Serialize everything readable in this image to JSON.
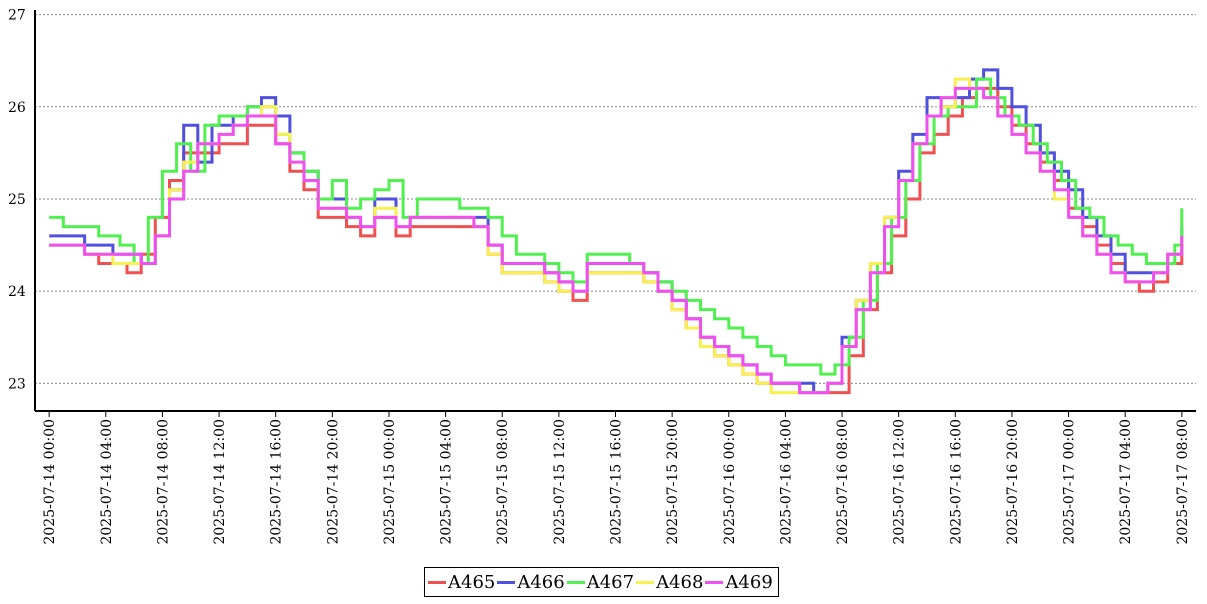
{
  "chart_data": {
    "type": "line",
    "title": "",
    "xlabel": "",
    "ylabel": "",
    "ylim": [
      22.7,
      27.05
    ],
    "xlim": [
      "2025-07-13 23:00",
      "2025-07-17 09:00"
    ],
    "grid": true,
    "legend_position": "bottom-center",
    "y_ticks": [
      23,
      24,
      25,
      26,
      27
    ],
    "x_ticks": [
      "2025-07-14 00:00",
      "2025-07-14 04:00",
      "2025-07-14 08:00",
      "2025-07-14 12:00",
      "2025-07-14 16:00",
      "2025-07-14 20:00",
      "2025-07-15 00:00",
      "2025-07-15 04:00",
      "2025-07-15 08:00",
      "2025-07-15 12:00",
      "2025-07-15 16:00",
      "2025-07-15 20:00",
      "2025-07-16 00:00",
      "2025-07-16 04:00",
      "2025-07-16 08:00",
      "2025-07-16 12:00",
      "2025-07-16 16:00",
      "2025-07-16 20:00",
      "2025-07-17 00:00",
      "2025-07-17 04:00",
      "2025-07-17 08:00"
    ],
    "series": [
      {
        "name": "A465",
        "color": "#f05050",
        "x": [
          "2025-07-14 00:00",
          "2025-07-14 02:30",
          "2025-07-14 03:30",
          "2025-07-14 05:30",
          "2025-07-14 06:30",
          "2025-07-14 07:30",
          "2025-07-14 08:30",
          "2025-07-14 09:30",
          "2025-07-14 10:30",
          "2025-07-14 11:00",
          "2025-07-14 12:00",
          "2025-07-14 14:00",
          "2025-07-14 15:00",
          "2025-07-14 16:00",
          "2025-07-14 17:00",
          "2025-07-14 18:00",
          "2025-07-14 19:00",
          "2025-07-14 20:00",
          "2025-07-14 21:00",
          "2025-07-14 22:00",
          "2025-07-14 23:00",
          "2025-07-15 00:30",
          "2025-07-15 01:30",
          "2025-07-15 06:00",
          "2025-07-15 07:00",
          "2025-07-15 08:00",
          "2025-07-15 09:00",
          "2025-07-15 11:00",
          "2025-07-15 12:00",
          "2025-07-15 13:00",
          "2025-07-15 14:00",
          "2025-07-15 17:00",
          "2025-07-15 18:00",
          "2025-07-15 19:00",
          "2025-07-15 20:00",
          "2025-07-15 21:00",
          "2025-07-15 22:00",
          "2025-07-15 23:00",
          "2025-07-16 00:00",
          "2025-07-16 01:00",
          "2025-07-16 02:00",
          "2025-07-16 03:00",
          "2025-07-16 05:00",
          "2025-07-16 07:30",
          "2025-07-16 08:30",
          "2025-07-16 09:30",
          "2025-07-16 10:30",
          "2025-07-16 11:30",
          "2025-07-16 12:30",
          "2025-07-16 13:30",
          "2025-07-16 14:30",
          "2025-07-16 15:30",
          "2025-07-16 16:30",
          "2025-07-16 17:30",
          "2025-07-16 19:00",
          "2025-07-16 20:00",
          "2025-07-16 21:00",
          "2025-07-16 22:00",
          "2025-07-16 23:00",
          "2025-07-17 00:00",
          "2025-07-17 01:00",
          "2025-07-17 02:00",
          "2025-07-17 03:00",
          "2025-07-17 04:00",
          "2025-07-17 05:00",
          "2025-07-17 06:00",
          "2025-07-17 07:00",
          "2025-07-17 08:00"
        ],
        "values": [
          24.5,
          24.4,
          24.3,
          24.2,
          24.4,
          24.8,
          25.2,
          25.5,
          25.5,
          25.5,
          25.6,
          25.8,
          25.8,
          25.6,
          25.3,
          25.1,
          24.8,
          24.8,
          24.7,
          24.6,
          24.8,
          24.6,
          24.7,
          24.7,
          24.4,
          24.2,
          24.2,
          24.1,
          24.0,
          23.9,
          24.2,
          24.2,
          24.1,
          24.0,
          23.8,
          23.6,
          23.4,
          23.3,
          23.2,
          23.1,
          23.0,
          23.0,
          22.9,
          22.9,
          23.3,
          23.8,
          24.2,
          24.6,
          25.0,
          25.5,
          25.7,
          25.9,
          26.1,
          26.2,
          26.0,
          25.8,
          25.6,
          25.4,
          25.2,
          24.9,
          24.7,
          24.5,
          24.3,
          24.1,
          24.0,
          24.1,
          24.3,
          24.5
        ]
      },
      {
        "name": "A466",
        "color": "#5050e0",
        "x": [
          "2025-07-14 00:00",
          "2025-07-14 02:30",
          "2025-07-14 04:30",
          "2025-07-14 06:30",
          "2025-07-14 07:30",
          "2025-07-14 08:30",
          "2025-07-14 09:30",
          "2025-07-14 10:30",
          "2025-07-14 11:30",
          "2025-07-14 12:00",
          "2025-07-14 13:00",
          "2025-07-14 14:00",
          "2025-07-14 15:00",
          "2025-07-14 16:00",
          "2025-07-14 17:00",
          "2025-07-14 18:00",
          "2025-07-14 19:00",
          "2025-07-14 20:00",
          "2025-07-14 21:00",
          "2025-07-14 22:00",
          "2025-07-14 23:00",
          "2025-07-15 00:30",
          "2025-07-15 01:30",
          "2025-07-15 06:00",
          "2025-07-15 07:00",
          "2025-07-15 08:00",
          "2025-07-15 09:00",
          "2025-07-15 11:00",
          "2025-07-15 12:00",
          "2025-07-15 13:00",
          "2025-07-15 14:00",
          "2025-07-15 17:00",
          "2025-07-15 18:00",
          "2025-07-15 19:00",
          "2025-07-15 20:00",
          "2025-07-15 21:00",
          "2025-07-15 22:00",
          "2025-07-15 23:00",
          "2025-07-16 00:00",
          "2025-07-16 01:00",
          "2025-07-16 02:00",
          "2025-07-16 03:00",
          "2025-07-16 04:00",
          "2025-07-16 06:00",
          "2025-07-16 07:00",
          "2025-07-16 08:00",
          "2025-07-16 09:00",
          "2025-07-16 10:00",
          "2025-07-16 11:00",
          "2025-07-16 12:00",
          "2025-07-16 13:00",
          "2025-07-16 14:00",
          "2025-07-16 15:00",
          "2025-07-16 16:00",
          "2025-07-16 17:00",
          "2025-07-16 18:00",
          "2025-07-16 19:00",
          "2025-07-16 20:00",
          "2025-07-16 21:00",
          "2025-07-16 22:00",
          "2025-07-16 23:00",
          "2025-07-17 00:00",
          "2025-07-17 01:00",
          "2025-07-17 02:00",
          "2025-07-17 03:00",
          "2025-07-17 04:00",
          "2025-07-17 05:00",
          "2025-07-17 06:00",
          "2025-07-17 07:00",
          "2025-07-17 08:00"
        ],
        "values": [
          24.6,
          24.5,
          24.4,
          24.3,
          24.6,
          25.1,
          25.8,
          25.4,
          25.8,
          25.8,
          25.9,
          26.0,
          26.1,
          25.9,
          25.5,
          25.3,
          25.0,
          25.0,
          24.8,
          24.7,
          25.0,
          24.7,
          24.8,
          24.8,
          24.5,
          24.3,
          24.3,
          24.2,
          24.1,
          24.0,
          24.3,
          24.3,
          24.2,
          24.1,
          23.9,
          23.7,
          23.5,
          23.4,
          23.3,
          23.2,
          23.1,
          23.0,
          23.0,
          22.9,
          23.0,
          23.5,
          23.9,
          24.3,
          24.8,
          25.3,
          25.7,
          26.1,
          26.0,
          26.1,
          26.3,
          26.4,
          26.2,
          26.0,
          25.8,
          25.5,
          25.3,
          25.1,
          24.8,
          24.6,
          24.4,
          24.2,
          24.2,
          24.2,
          24.4,
          24.7
        ]
      },
      {
        "name": "A467",
        "color": "#50f050",
        "x": [
          "2025-07-14 00:00",
          "2025-07-14 01:00",
          "2025-07-14 03:30",
          "2025-07-14 05:00",
          "2025-07-14 06:00",
          "2025-07-14 07:00",
          "2025-07-14 08:00",
          "2025-07-14 09:00",
          "2025-07-14 10:00",
          "2025-07-14 11:00",
          "2025-07-14 12:00",
          "2025-07-14 13:00",
          "2025-07-14 14:00",
          "2025-07-14 15:00",
          "2025-07-14 16:00",
          "2025-07-14 17:00",
          "2025-07-14 18:00",
          "2025-07-14 19:00",
          "2025-07-14 20:00",
          "2025-07-14 21:00",
          "2025-07-14 22:00",
          "2025-07-14 23:00",
          "2025-07-15 00:00",
          "2025-07-15 01:00",
          "2025-07-15 02:00",
          "2025-07-15 05:00",
          "2025-07-15 07:00",
          "2025-07-15 08:00",
          "2025-07-15 09:00",
          "2025-07-15 11:00",
          "2025-07-15 12:00",
          "2025-07-15 13:00",
          "2025-07-15 14:00",
          "2025-07-15 17:00",
          "2025-07-15 18:00",
          "2025-07-15 19:00",
          "2025-07-15 20:00",
          "2025-07-15 21:00",
          "2025-07-15 22:00",
          "2025-07-15 23:00",
          "2025-07-16 00:00",
          "2025-07-16 01:00",
          "2025-07-16 02:00",
          "2025-07-16 03:00",
          "2025-07-16 04:00",
          "2025-07-16 05:00",
          "2025-07-16 06:30",
          "2025-07-16 07:30",
          "2025-07-16 08:30",
          "2025-07-16 09:30",
          "2025-07-16 10:30",
          "2025-07-16 11:30",
          "2025-07-16 12:30",
          "2025-07-16 13:30",
          "2025-07-16 14:30",
          "2025-07-16 15:30",
          "2025-07-16 16:30",
          "2025-07-16 17:30",
          "2025-07-16 18:30",
          "2025-07-16 19:30",
          "2025-07-16 20:30",
          "2025-07-16 21:30",
          "2025-07-16 22:30",
          "2025-07-16 23:30",
          "2025-07-17 00:30",
          "2025-07-17 01:30",
          "2025-07-17 02:30",
          "2025-07-17 03:30",
          "2025-07-17 04:30",
          "2025-07-17 05:30",
          "2025-07-17 06:30",
          "2025-07-17 07:30",
          "2025-07-17 08:00"
        ],
        "values": [
          24.8,
          24.7,
          24.6,
          24.5,
          24.3,
          24.8,
          25.3,
          25.6,
          25.3,
          25.8,
          25.9,
          25.9,
          26.0,
          26.0,
          25.7,
          25.5,
          25.3,
          25.0,
          25.2,
          24.9,
          25.0,
          25.1,
          25.2,
          24.8,
          25.0,
          24.9,
          24.8,
          24.6,
          24.4,
          24.3,
          24.2,
          24.1,
          24.4,
          24.3,
          24.2,
          24.1,
          24.0,
          23.9,
          23.8,
          23.7,
          23.6,
          23.5,
          23.4,
          23.3,
          23.2,
          23.2,
          23.1,
          23.2,
          23.5,
          23.9,
          24.3,
          24.8,
          25.2,
          25.6,
          25.9,
          26.0,
          26.0,
          26.3,
          26.1,
          25.9,
          25.8,
          25.6,
          25.4,
          25.2,
          24.9,
          24.8,
          24.6,
          24.5,
          24.4,
          24.3,
          24.3,
          24.5,
          24.9
        ]
      },
      {
        "name": "A468",
        "color": "#f8f050",
        "x": [
          "2025-07-14 00:00",
          "2025-07-14 02:30",
          "2025-07-14 04:30",
          "2025-07-14 06:30",
          "2025-07-14 07:30",
          "2025-07-14 08:30",
          "2025-07-14 09:30",
          "2025-07-14 10:30",
          "2025-07-14 12:00",
          "2025-07-14 13:00",
          "2025-07-14 14:00",
          "2025-07-14 15:00",
          "2025-07-14 16:00",
          "2025-07-14 17:00",
          "2025-07-14 18:00",
          "2025-07-14 19:00",
          "2025-07-14 20:00",
          "2025-07-14 21:00",
          "2025-07-14 22:00",
          "2025-07-14 23:00",
          "2025-07-15 00:30",
          "2025-07-15 01:30",
          "2025-07-15 06:00",
          "2025-07-15 07:00",
          "2025-07-15 08:00",
          "2025-07-15 09:00",
          "2025-07-15 11:00",
          "2025-07-15 12:00",
          "2025-07-15 13:00",
          "2025-07-15 14:00",
          "2025-07-15 17:00",
          "2025-07-15 18:00",
          "2025-07-15 19:00",
          "2025-07-15 20:00",
          "2025-07-15 21:00",
          "2025-07-15 22:00",
          "2025-07-15 23:00",
          "2025-07-16 00:00",
          "2025-07-16 01:00",
          "2025-07-16 02:00",
          "2025-07-16 03:00",
          "2025-07-16 05:00",
          "2025-07-16 07:00",
          "2025-07-16 08:00",
          "2025-07-16 09:00",
          "2025-07-16 10:00",
          "2025-07-16 11:00",
          "2025-07-16 12:00",
          "2025-07-16 13:00",
          "2025-07-16 14:00",
          "2025-07-16 15:00",
          "2025-07-16 16:00",
          "2025-07-16 17:00",
          "2025-07-16 18:00",
          "2025-07-16 19:00",
          "2025-07-16 20:00",
          "2025-07-16 21:00",
          "2025-07-16 22:00",
          "2025-07-16 23:00",
          "2025-07-17 00:00",
          "2025-07-17 01:00",
          "2025-07-17 02:00",
          "2025-07-17 03:00",
          "2025-07-17 04:00",
          "2025-07-17 05:00",
          "2025-07-17 06:00",
          "2025-07-17 07:00",
          "2025-07-17 08:00"
        ],
        "values": [
          24.5,
          24.4,
          24.3,
          24.3,
          24.6,
          25.1,
          25.4,
          25.6,
          25.7,
          25.8,
          25.9,
          26.0,
          25.7,
          25.4,
          25.2,
          24.9,
          24.9,
          24.8,
          24.7,
          24.9,
          24.7,
          24.8,
          24.7,
          24.4,
          24.2,
          24.2,
          24.1,
          24.0,
          24.0,
          24.2,
          24.2,
          24.1,
          24.0,
          23.8,
          23.6,
          23.4,
          23.3,
          23.2,
          23.1,
          23.0,
          22.9,
          22.9,
          23.0,
          23.4,
          23.9,
          24.3,
          24.8,
          25.2,
          25.6,
          25.9,
          26.0,
          26.3,
          26.2,
          26.1,
          25.9,
          25.7,
          25.5,
          25.3,
          25.0,
          24.8,
          24.6,
          24.4,
          24.2,
          24.1,
          24.1,
          24.2,
          24.4,
          24.6
        ]
      },
      {
        "name": "A469",
        "color": "#f050f0",
        "x": [
          "2025-07-14 00:00",
          "2025-07-14 02:30",
          "2025-07-14 04:30",
          "2025-07-14 06:30",
          "2025-07-14 07:30",
          "2025-07-14 08:30",
          "2025-07-14 09:30",
          "2025-07-14 10:30",
          "2025-07-14 12:00",
          "2025-07-14 13:00",
          "2025-07-14 14:00",
          "2025-07-14 15:00",
          "2025-07-14 16:00",
          "2025-07-14 17:00",
          "2025-07-14 18:00",
          "2025-07-14 19:00",
          "2025-07-14 20:00",
          "2025-07-14 21:00",
          "2025-07-14 22:00",
          "2025-07-14 23:00",
          "2025-07-15 00:30",
          "2025-07-15 01:30",
          "2025-07-15 06:00",
          "2025-07-15 07:00",
          "2025-07-15 08:00",
          "2025-07-15 09:00",
          "2025-07-15 11:00",
          "2025-07-15 12:00",
          "2025-07-15 13:00",
          "2025-07-15 14:00",
          "2025-07-15 17:00",
          "2025-07-15 18:00",
          "2025-07-15 19:00",
          "2025-07-15 20:00",
          "2025-07-15 21:00",
          "2025-07-15 22:00",
          "2025-07-15 23:00",
          "2025-07-16 00:00",
          "2025-07-16 01:00",
          "2025-07-16 02:00",
          "2025-07-16 03:00",
          "2025-07-16 05:00",
          "2025-07-16 07:00",
          "2025-07-16 08:00",
          "2025-07-16 09:00",
          "2025-07-16 10:00",
          "2025-07-16 11:00",
          "2025-07-16 12:00",
          "2025-07-16 13:00",
          "2025-07-16 14:00",
          "2025-07-16 15:00",
          "2025-07-16 16:00",
          "2025-07-16 17:00",
          "2025-07-16 18:00",
          "2025-07-16 19:00",
          "2025-07-16 20:00",
          "2025-07-16 21:00",
          "2025-07-16 22:00",
          "2025-07-16 23:00",
          "2025-07-17 00:00",
          "2025-07-17 01:00",
          "2025-07-17 02:00",
          "2025-07-17 03:00",
          "2025-07-17 04:00",
          "2025-07-17 05:00",
          "2025-07-17 06:00",
          "2025-07-17 07:00",
          "2025-07-17 08:00"
        ],
        "values": [
          24.5,
          24.4,
          24.4,
          24.3,
          24.6,
          25.0,
          25.3,
          25.6,
          25.7,
          25.8,
          25.9,
          25.9,
          25.6,
          25.4,
          25.2,
          24.9,
          24.9,
          24.8,
          24.7,
          24.8,
          24.7,
          24.8,
          24.7,
          24.5,
          24.3,
          24.3,
          24.2,
          24.1,
          24.0,
          24.3,
          24.3,
          24.2,
          24.0,
          23.9,
          23.7,
          23.5,
          23.4,
          23.3,
          23.2,
          23.1,
          23.0,
          22.9,
          23.0,
          23.4,
          23.8,
          24.2,
          24.7,
          25.2,
          25.6,
          25.9,
          26.1,
          26.2,
          26.2,
          26.1,
          25.9,
          25.7,
          25.5,
          25.3,
          25.1,
          24.8,
          24.6,
          24.4,
          24.2,
          24.1,
          24.1,
          24.2,
          24.4,
          24.6
        ]
      }
    ]
  }
}
